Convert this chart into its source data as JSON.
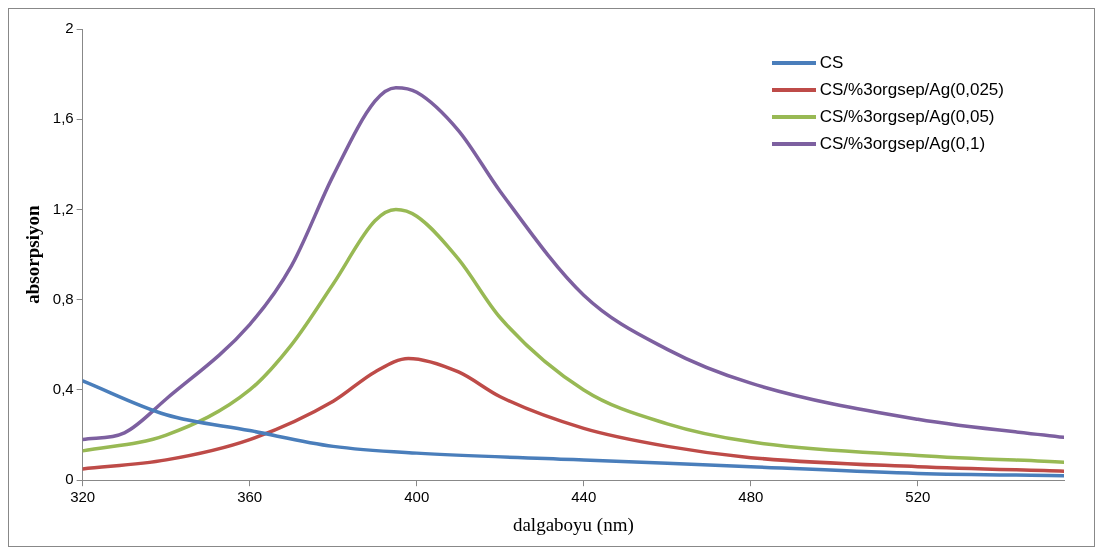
{
  "chart_data": {
    "type": "line",
    "xlabel": "dalgaboyu (nm)",
    "ylabel": "absorpsiyon",
    "xlim": [
      320,
      555
    ],
    "xticks": [
      320,
      360,
      400,
      440,
      480,
      520
    ],
    "ylim": [
      0,
      2
    ],
    "yticks": [
      0,
      {
        "value": 0.4,
        "label": "0,4"
      },
      {
        "value": 0.8,
        "label": "0,8"
      },
      {
        "value": 1.2,
        "label": "1,2"
      },
      {
        "value": 1.6,
        "label": "1,6"
      },
      2
    ],
    "grid": false,
    "legend": "top right",
    "marker": "none",
    "line_style": "solid",
    "series": [
      {
        "name": "CS",
        "color": "#4a7ebb",
        "x": [
          320,
          340,
          360,
          380,
          400,
          440,
          480,
          520,
          555
        ],
        "values": [
          0.44,
          0.29,
          0.22,
          0.15,
          0.12,
          0.09,
          0.06,
          0.03,
          0.02
        ]
      },
      {
        "name": "CS/%3orgsep/Ag(0,025)",
        "color": "#be4b48",
        "x": [
          320,
          340,
          360,
          380,
          390,
          398,
          410,
          420,
          440,
          460,
          480,
          520,
          555
        ],
        "values": [
          0.05,
          0.09,
          0.18,
          0.35,
          0.48,
          0.54,
          0.48,
          0.37,
          0.23,
          0.15,
          0.1,
          0.06,
          0.04
        ]
      },
      {
        "name": "CS/%3orgsep/Ag(0,05)",
        "color": "#98b954",
        "x": [
          320,
          340,
          360,
          370,
          380,
          390,
          395,
          400,
          410,
          420,
          440,
          460,
          480,
          520,
          555
        ],
        "values": [
          0.13,
          0.2,
          0.4,
          0.6,
          0.87,
          1.15,
          1.2,
          1.17,
          0.98,
          0.72,
          0.4,
          0.25,
          0.17,
          0.11,
          0.08
        ]
      },
      {
        "name": "CS/%3orgsep/Ag(0,1)",
        "color": "#7d60a0",
        "x": [
          320,
          330,
          340,
          360,
          370,
          380,
          390,
          395,
          400,
          410,
          420,
          440,
          460,
          480,
          520,
          555
        ],
        "values": [
          0.18,
          0.21,
          0.36,
          0.69,
          0.95,
          1.35,
          1.68,
          1.74,
          1.72,
          1.55,
          1.28,
          0.82,
          0.58,
          0.43,
          0.27,
          0.19
        ]
      }
    ]
  }
}
